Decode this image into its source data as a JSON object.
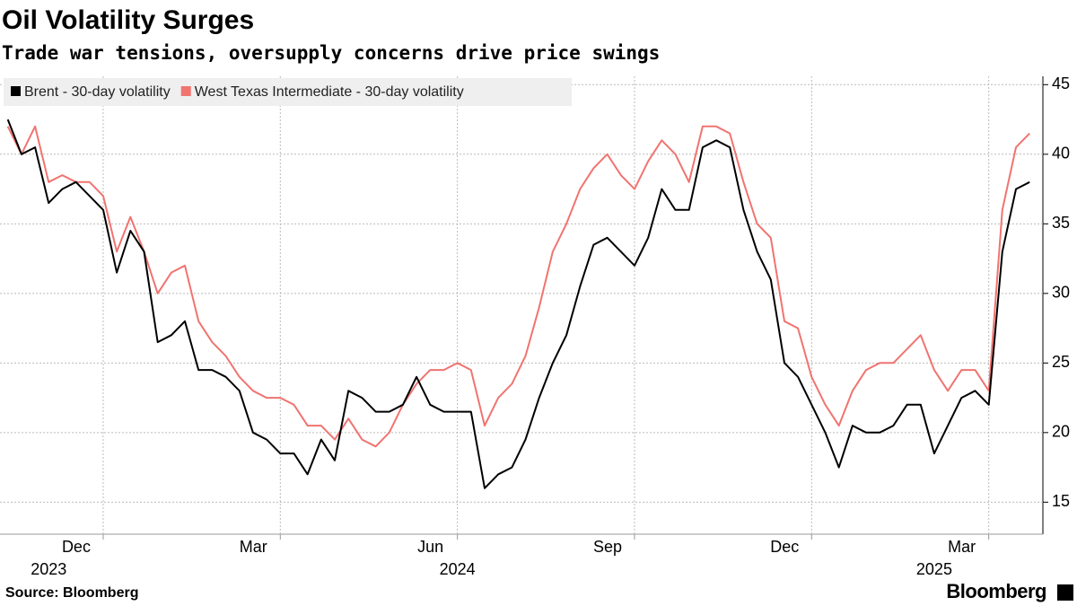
{
  "chart_data": {
    "type": "line",
    "title": "Oil Volatility Surges",
    "subtitle": "Trade war tensions, oversupply concerns drive price swings",
    "source": "Source: Bloomberg",
    "brand": "Bloomberg",
    "categories": [
      null,
      null,
      null,
      null,
      null,
      null,
      null,
      "Dec",
      null,
      null,
      null,
      null,
      null,
      null,
      null,
      null,
      null,
      null,
      null,
      null,
      "Mar",
      null,
      null,
      null,
      null,
      null,
      null,
      null,
      null,
      null,
      null,
      null,
      null,
      "Jun",
      null,
      null,
      null,
      null,
      null,
      null,
      null,
      null,
      null,
      null,
      null,
      null,
      "Sep",
      null,
      null,
      null,
      null,
      null,
      null,
      null,
      null,
      null,
      null,
      null,
      null,
      "Dec",
      null,
      null,
      null,
      null,
      null,
      null,
      null,
      null,
      null,
      null,
      null,
      null,
      "Mar",
      null,
      null,
      null
    ],
    "years": [
      {
        "index": 3,
        "label": "2023"
      },
      {
        "index": 33,
        "label": "2024"
      },
      {
        "index": 68,
        "label": "2025"
      }
    ],
    "series": [
      {
        "name": "Brent - 30-day volatility",
        "color": "#000000",
        "values": [
          42.5,
          40,
          40.5,
          36.5,
          37.5,
          38,
          37,
          36,
          31.5,
          34.5,
          33,
          26.5,
          27,
          28,
          24.5,
          24.5,
          24,
          23,
          20,
          19.5,
          18.5,
          18.5,
          17,
          19.5,
          18,
          23,
          22.5,
          21.5,
          21.5,
          22,
          24,
          22,
          21.5,
          21.5,
          21.5,
          16,
          17,
          17.5,
          19.5,
          22.5,
          25,
          27,
          30.5,
          33.5,
          34,
          33,
          32,
          34,
          37.5,
          36,
          36,
          40.5,
          41,
          40.5,
          36,
          33,
          31,
          25,
          24,
          22,
          20,
          17.5,
          20.5,
          20,
          20,
          20.5,
          22,
          22,
          18.5,
          20.5,
          22.5,
          23,
          22,
          33,
          37.5,
          38
        ]
      },
      {
        "name": "West Texas Intermediate - 30-day volatility",
        "color": "#f07470",
        "values": [
          42,
          40,
          42,
          38,
          38.5,
          38,
          38,
          37,
          33,
          35.5,
          33,
          30,
          31.5,
          32,
          28,
          26.5,
          25.5,
          24,
          23,
          22.5,
          22.5,
          22,
          20.5,
          20.5,
          19.5,
          21,
          19.5,
          19,
          20,
          22,
          23.5,
          24.5,
          24.5,
          25,
          24.5,
          20.5,
          22.5,
          23.5,
          25.5,
          29,
          33,
          35,
          37.5,
          39,
          40,
          38.5,
          37.5,
          39.5,
          41,
          40,
          38,
          42,
          42,
          41.5,
          38,
          35,
          34,
          28,
          27.5,
          24,
          22,
          20.5,
          23,
          24.5,
          25,
          25,
          26,
          27,
          24.5,
          23,
          24.5,
          24.5,
          23,
          36,
          40.5,
          41.5
        ]
      }
    ],
    "ylim": [
      12.7,
      45.6
    ],
    "yticks": [
      15,
      20,
      25,
      30,
      35,
      40,
      45
    ],
    "grid": true
  }
}
